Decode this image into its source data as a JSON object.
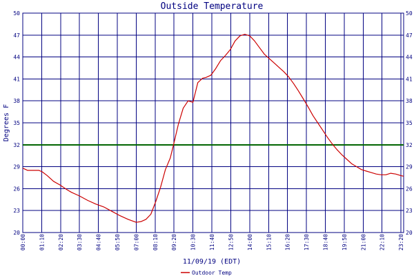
{
  "chart_data": {
    "type": "line",
    "title": "Outside Temperature",
    "xlabel": "11/09/19 (EDT)",
    "ylabel": "Degrees F",
    "ylim": [
      20,
      50
    ],
    "y_ticks": [
      20,
      23,
      26,
      29,
      32,
      35,
      38,
      41,
      44,
      47,
      50
    ],
    "x_ticks": [
      "00:00",
      "01:10",
      "02:20",
      "03:30",
      "04:40",
      "05:50",
      "07:00",
      "08:10",
      "09:20",
      "10:30",
      "11:40",
      "12:50",
      "14:00",
      "15:10",
      "16:20",
      "17:30",
      "18:40",
      "19:50",
      "21:00",
      "22:10",
      "23:20"
    ],
    "x_unit": "hours",
    "xlim": [
      0,
      23.5
    ],
    "grid": true,
    "reference_line": {
      "y": 32,
      "color": "#006400"
    },
    "legend_position": "bottom-left",
    "series": [
      {
        "name": "Outdoor Temp",
        "color": "#cc0000",
        "x": [
          0.0,
          0.3,
          0.6,
          1.0,
          1.2,
          1.5,
          1.9,
          2.3,
          2.7,
          3.0,
          3.5,
          4.0,
          4.5,
          5.0,
          5.5,
          6.0,
          6.5,
          7.0,
          7.3,
          7.6,
          7.9,
          8.2,
          8.5,
          8.8,
          9.1,
          9.3,
          9.6,
          9.9,
          10.2,
          10.5,
          10.8,
          11.1,
          11.3,
          11.6,
          11.9,
          12.2,
          12.5,
          12.8,
          13.1,
          13.4,
          13.7,
          14.0,
          14.3,
          14.6,
          14.9,
          15.2,
          15.5,
          15.8,
          16.1,
          16.4,
          16.7,
          17.0,
          17.3,
          17.6,
          17.9,
          18.2,
          18.5,
          18.8,
          19.1,
          19.4,
          19.7,
          20.0,
          20.3,
          20.6,
          20.9,
          21.2,
          21.5,
          21.8,
          22.1,
          22.4,
          22.7,
          23.0,
          23.3,
          23.5
        ],
        "values": [
          28.8,
          28.5,
          28.5,
          28.5,
          28.3,
          27.8,
          27.0,
          26.5,
          25.9,
          25.5,
          25.0,
          24.4,
          23.9,
          23.5,
          22.9,
          22.3,
          21.8,
          21.4,
          21.5,
          21.8,
          22.5,
          24.2,
          26.2,
          28.6,
          30.2,
          32.0,
          34.8,
          37.0,
          38.0,
          37.8,
          40.5,
          41.1,
          41.2,
          41.5,
          42.4,
          43.5,
          44.2,
          45.0,
          46.2,
          46.9,
          47.1,
          46.9,
          46.2,
          45.3,
          44.4,
          43.8,
          43.2,
          42.6,
          42.0,
          41.3,
          40.4,
          39.4,
          38.3,
          37.2,
          36.0,
          35.0,
          34.0,
          33.0,
          32.1,
          31.3,
          30.6,
          30.0,
          29.4,
          29.0,
          28.6,
          28.4,
          28.2,
          28.0,
          27.9,
          27.9,
          28.1,
          28.0,
          27.8,
          27.7
        ]
      }
    ]
  }
}
